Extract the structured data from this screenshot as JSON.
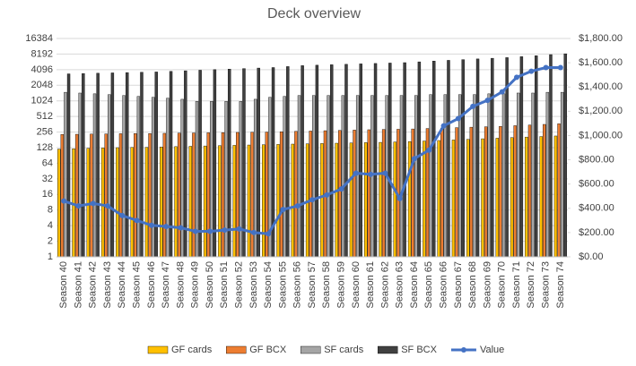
{
  "chart_data": {
    "type": "bar",
    "title": "Deck overview",
    "categories": [
      "Season 40",
      "Season 41",
      "Season 42",
      "Season 43",
      "Season 44",
      "Season 45",
      "Season 46",
      "Season 47",
      "Season 48",
      "Season 49",
      "Season 50",
      "Season 51",
      "Season 52",
      "Season 53",
      "Season 54",
      "Season 55",
      "Season 56",
      "Season 57",
      "Season 58",
      "Season 59",
      "Season 60",
      "Season 61",
      "Season 62",
      "Season 63",
      "Season 64",
      "Season 65",
      "Season 66",
      "Season 67",
      "Season 68",
      "Season 69",
      "Season 70",
      "Season 71",
      "Season 72",
      "Season 73",
      "Season 74"
    ],
    "series": [
      {
        "name": "GF cards",
        "color": "#ffc000",
        "values": [
          120,
          122,
          124,
          126,
          128,
          130,
          130,
          132,
          134,
          136,
          138,
          140,
          142,
          144,
          146,
          148,
          150,
          152,
          154,
          156,
          158,
          160,
          162,
          165,
          168,
          172,
          176,
          180,
          185,
          190,
          195,
          200,
          205,
          210,
          215
        ]
      },
      {
        "name": "GF BCX",
        "color": "#ed7d31",
        "values": [
          230,
          232,
          234,
          236,
          238,
          240,
          240,
          242,
          244,
          246,
          248,
          250,
          252,
          254,
          256,
          260,
          264,
          268,
          272,
          276,
          280,
          284,
          288,
          290,
          294,
          300,
          306,
          312,
          318,
          324,
          330,
          340,
          350,
          360,
          370
        ]
      },
      {
        "name": "SF cards",
        "color": "#a5a5a5",
        "values": [
          1500,
          1450,
          1400,
          1350,
          1300,
          1250,
          1200,
          1150,
          1100,
          1000,
          1000,
          1000,
          1000,
          1100,
          1200,
          1250,
          1300,
          1300,
          1300,
          1300,
          1300,
          1300,
          1300,
          1300,
          1300,
          1350,
          1350,
          1350,
          1350,
          1400,
          1400,
          1450,
          1450,
          1500,
          1500
        ]
      },
      {
        "name": "SF BCX",
        "color": "#404040",
        "values": [
          3400,
          3450,
          3500,
          3550,
          3600,
          3650,
          3700,
          3800,
          3900,
          4000,
          4100,
          4200,
          4300,
          4400,
          4500,
          4700,
          4900,
          5000,
          5100,
          5200,
          5300,
          5400,
          5500,
          5600,
          5800,
          6000,
          6200,
          6400,
          6600,
          6800,
          7000,
          7300,
          7600,
          8000,
          8300
        ]
      },
      {
        "name": "Value",
        "color": "#4472c4",
        "type": "line",
        "axis": "y2",
        "values": [
          460,
          420,
          440,
          420,
          340,
          300,
          260,
          250,
          240,
          210,
          210,
          220,
          230,
          200,
          190,
          390,
          420,
          470,
          510,
          560,
          690,
          680,
          690,
          480,
          810,
          880,
          1080,
          1140,
          1240,
          1290,
          1360,
          1480,
          1530,
          1560,
          1560
        ]
      }
    ],
    "ylog": true,
    "ylim": [
      1,
      16384
    ],
    "yticks": [
      1,
      2,
      4,
      8,
      16,
      32,
      64,
      128,
      256,
      512,
      1024,
      2048,
      4096,
      8192,
      16384
    ],
    "y2lim": [
      0,
      1800
    ],
    "y2ticks": [
      {
        "value": 0,
        "label": "$0.00"
      },
      {
        "value": 200,
        "label": "$200.00"
      },
      {
        "value": 400,
        "label": "$400.00"
      },
      {
        "value": 600,
        "label": "$600.00"
      },
      {
        "value": 800,
        "label": "$800.00"
      },
      {
        "value": 1000,
        "label": "$1,000.00"
      },
      {
        "value": 1200,
        "label": "$1,200.00"
      },
      {
        "value": 1400,
        "label": "$1,400.00"
      },
      {
        "value": 1600,
        "label": "$1,600.00"
      },
      {
        "value": 1800,
        "label": "$1,800.00"
      }
    ],
    "grid": true,
    "legend": "bottom"
  }
}
